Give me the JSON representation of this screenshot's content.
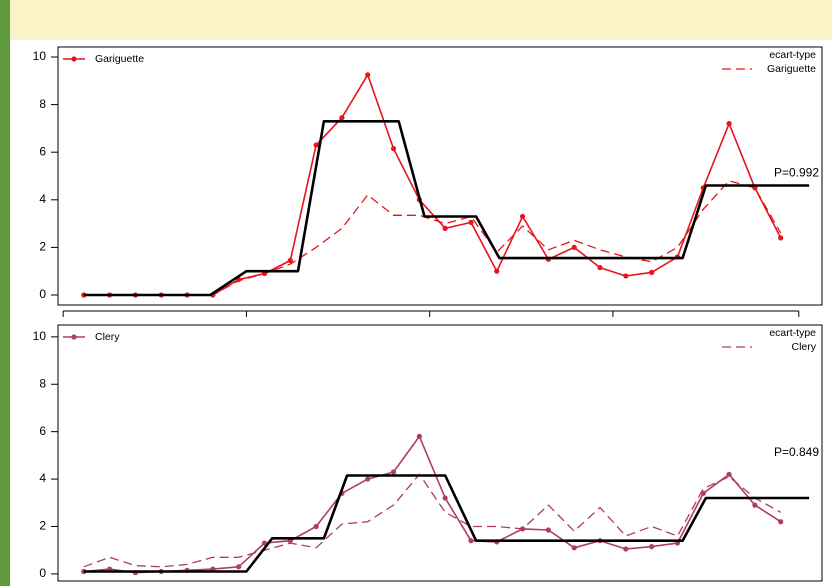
{
  "chart_data": [
    {
      "type": "line",
      "x": [
        1,
        2,
        3,
        4,
        5,
        6,
        7,
        8,
        9,
        10,
        11,
        12,
        13,
        14,
        15,
        16,
        17,
        18,
        19,
        20,
        21,
        22,
        23,
        24,
        25,
        26,
        27,
        28
      ],
      "xlim": [
        0,
        29.6
      ],
      "xticks": [
        0.2,
        7.3,
        14.4,
        21.5,
        28.7
      ],
      "ylim": [
        -0.42,
        10.42
      ],
      "yticks": [
        0,
        2,
        4,
        6,
        8,
        10
      ],
      "legend_title": "ecart-type",
      "annotation": "P=0.992",
      "series": [
        {
          "name": "Gariguette",
          "color": "#e8141c",
          "style": "solid-points",
          "values": [
            0,
            0,
            0,
            0,
            0,
            0,
            0.65,
            0.9,
            1.45,
            6.3,
            7.45,
            9.25,
            6.15,
            4.0,
            2.8,
            3.05,
            1.0,
            3.3,
            1.5,
            2.0,
            1.15,
            0.8,
            0.95,
            1.6,
            4.5,
            7.2,
            4.5,
            2.4
          ]
        },
        {
          "name": "Gariguette",
          "color": "#e8141c",
          "style": "dashed",
          "values": [
            0,
            0,
            0,
            0,
            0,
            0,
            0.6,
            0.9,
            1.3,
            2.0,
            2.8,
            4.2,
            3.35,
            3.35,
            3.0,
            3.3,
            1.8,
            2.9,
            1.9,
            2.3,
            1.9,
            1.6,
            1.4,
            2.0,
            3.6,
            4.8,
            4.5,
            2.6
          ]
        },
        {
          "color": "#000000",
          "style": "thick",
          "x": [
            1,
            5.9,
            7.3,
            9.3,
            10.3,
            13.2,
            14.2,
            16.2,
            17.1,
            24.2,
            25.1,
            29.1
          ],
          "values": [
            0,
            0,
            1,
            1,
            7.3,
            7.3,
            3.3,
            3.3,
            1.55,
            1.55,
            4.6,
            4.6
          ]
        }
      ]
    },
    {
      "type": "line",
      "x": [
        1,
        2,
        3,
        4,
        5,
        6,
        7,
        8,
        9,
        10,
        11,
        12,
        13,
        14,
        15,
        16,
        17,
        18,
        19,
        20,
        21,
        22,
        23,
        24,
        25,
        26,
        27,
        28
      ],
      "xlim": [
        0,
        29.6
      ],
      "xticks": [
        0.2,
        7.3,
        14.4,
        21.5,
        28.7
      ],
      "ylim": [
        -0.3,
        10.5
      ],
      "yticks": [
        0,
        2,
        4,
        6,
        8,
        10
      ],
      "legend_title": "ecart-type",
      "annotation": "P=0.849",
      "series": [
        {
          "name": "Clery",
          "color": "#b03a6e",
          "style": "solid-points",
          "values": [
            0.1,
            0.2,
            0.05,
            0.1,
            0.15,
            0.2,
            0.3,
            1.3,
            1.4,
            2.0,
            3.4,
            4.0,
            4.3,
            5.8,
            3.2,
            1.4,
            1.35,
            1.9,
            1.85,
            1.1,
            1.4,
            1.05,
            1.15,
            1.3,
            3.4,
            4.2,
            2.9,
            2.2
          ]
        },
        {
          "name": "Clery",
          "color": "#b03a6e",
          "style": "dashed",
          "values": [
            0.3,
            0.7,
            0.35,
            0.3,
            0.4,
            0.7,
            0.7,
            1.0,
            1.3,
            1.1,
            2.1,
            2.2,
            2.9,
            4.2,
            2.6,
            2.0,
            2.0,
            1.9,
            2.9,
            1.8,
            2.8,
            1.6,
            2.0,
            1.6,
            3.6,
            4.1,
            3.2,
            2.6
          ]
        },
        {
          "color": "#000000",
          "style": "thick",
          "x": [
            1,
            7.3,
            8.3,
            10.3,
            11.2,
            15,
            16.2,
            24.2,
            25.1,
            29.1
          ],
          "values": [
            0.1,
            0.1,
            1.5,
            1.5,
            4.15,
            4.15,
            1.4,
            1.4,
            3.2,
            3.2
          ]
        }
      ]
    }
  ]
}
